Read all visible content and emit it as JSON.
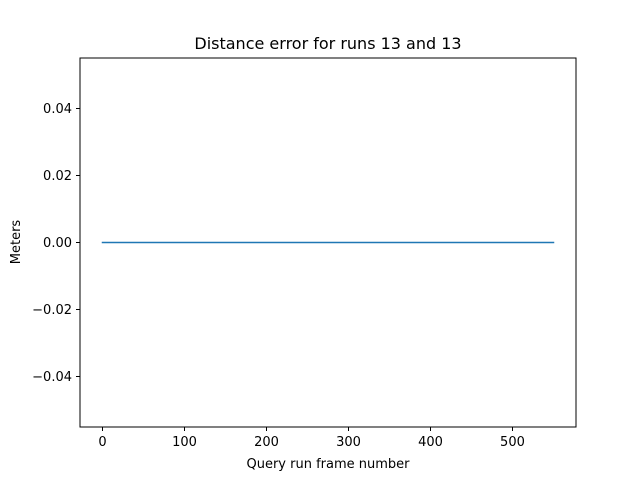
{
  "chart_data": {
    "type": "line",
    "title": "Distance error for runs 13 and 13",
    "xlabel": "Query run frame number",
    "ylabel": "Meters",
    "xlim": [
      -27.5,
      577.5
    ],
    "ylim": [
      -0.055,
      0.055
    ],
    "xticks": [
      0,
      100,
      200,
      300,
      400,
      500
    ],
    "xtick_labels": [
      "0",
      "100",
      "200",
      "300",
      "400",
      "500"
    ],
    "yticks": [
      -0.04,
      -0.02,
      0.0,
      0.02,
      0.04
    ],
    "ytick_labels": [
      "−0.04",
      "−0.02",
      "0.00",
      "0.02",
      "0.04"
    ],
    "grid": false,
    "series": [
      {
        "color": "#1f77b4",
        "x": [
          0,
          550
        ],
        "y": [
          0.0,
          0.0
        ]
      }
    ]
  }
}
